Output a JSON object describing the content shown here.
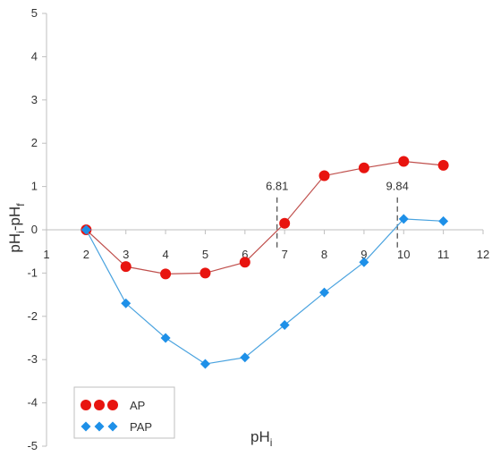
{
  "chart_data": {
    "type": "line",
    "title": "",
    "xlabel": "pH",
    "xlabel_sub": "i",
    "ylabel_parts": [
      "pH",
      "i",
      "-pH",
      "f"
    ],
    "xlim": [
      1,
      12
    ],
    "ylim": [
      -5,
      5
    ],
    "x_ticks": [
      1,
      2,
      3,
      4,
      5,
      6,
      7,
      8,
      9,
      10,
      11,
      12
    ],
    "y_ticks": [
      5,
      4,
      3,
      2,
      1,
      0,
      -1,
      -2,
      -3,
      -4,
      -5
    ],
    "grid": false,
    "legend_position": "bottom-left",
    "series": [
      {
        "name": "AP",
        "color": "#e8140f",
        "line_color": "#c0504d",
        "marker": "circle",
        "x": [
          2,
          3,
          4,
          5,
          6,
          7,
          8,
          9,
          10,
          11
        ],
        "y": [
          0,
          -0.85,
          -1.02,
          -1.0,
          -0.75,
          0.15,
          1.25,
          1.43,
          1.58,
          1.49
        ]
      },
      {
        "name": "PAP",
        "color": "#1e90e8",
        "line_color": "#4aa3df",
        "marker": "diamond",
        "x": [
          2,
          3,
          4,
          5,
          6,
          7,
          8,
          9,
          10,
          11
        ],
        "y": [
          0,
          -1.7,
          -2.5,
          -3.1,
          -2.95,
          -2.2,
          -1.45,
          -0.75,
          0.25,
          0.2
        ]
      }
    ],
    "annotations": [
      {
        "text": "6.81",
        "x": 6.81
      },
      {
        "text": "9.84",
        "x": 9.84
      }
    ]
  }
}
